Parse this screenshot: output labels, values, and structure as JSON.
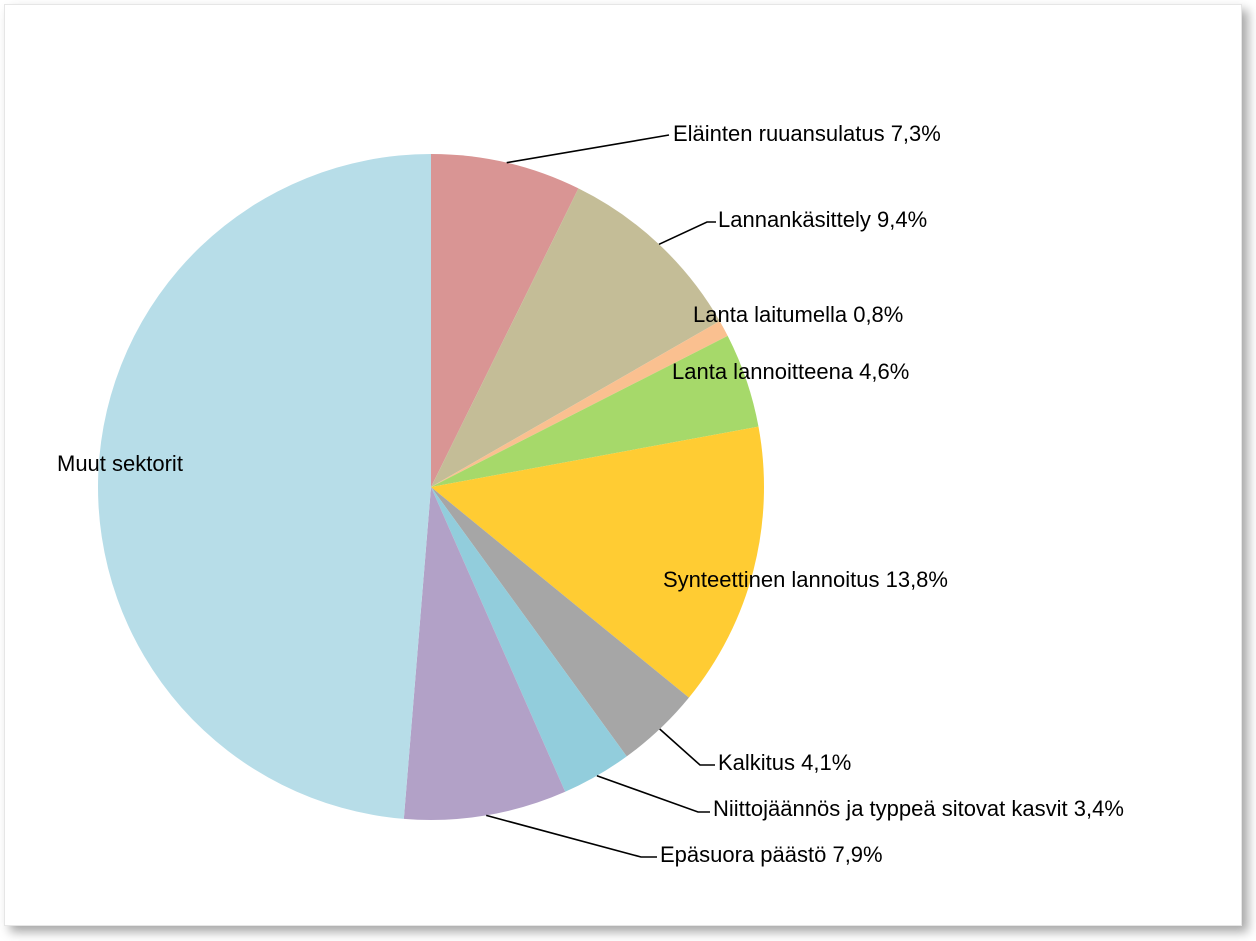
{
  "chart_data": {
    "type": "pie",
    "unit": "%",
    "start_angle_deg": 0,
    "direction": "clockwise",
    "slices": [
      {
        "label": "Eläinten ruuansulatus 7,3%",
        "value": 7.3,
        "color": "#d99594"
      },
      {
        "label": "Lannankäsittely 9,4%",
        "value": 9.4,
        "color": "#c4bd97"
      },
      {
        "label": "Lanta laitumella 0,8%",
        "value": 0.8,
        "color": "#fac090"
      },
      {
        "label": "Lanta lannoitteena 4,6%",
        "value": 4.6,
        "color": "#a6d96a"
      },
      {
        "label": "Synteettinen lannoitus 13,8%",
        "value": 13.8,
        "color": "#ffcc33"
      },
      {
        "label": "Kalkitus 4,1%",
        "value": 4.1,
        "color": "#a6a6a6"
      },
      {
        "label": "Niittojäännös ja typpeä sitovat kasvit 3,4%",
        "value": 3.4,
        "color": "#92cddc"
      },
      {
        "label": "Epäsuora päästö 7,9%",
        "value": 7.9,
        "color": "#b2a1c7"
      },
      {
        "label": "Muut sektorit",
        "value": 48.7,
        "color": "#b7dde8"
      }
    ]
  }
}
